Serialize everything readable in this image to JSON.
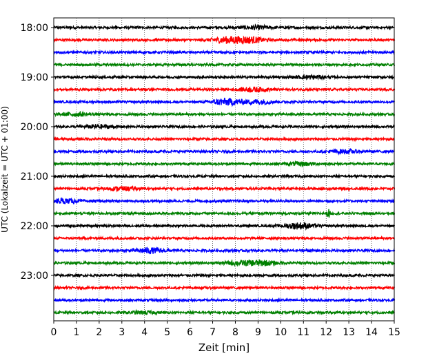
{
  "chart_data": {
    "type": "line",
    "title": "",
    "xlabel": "Zeit  [min]",
    "ylabel": "UTC (Lokalzeit = UTC + 01:00)",
    "xlim": [
      0,
      15
    ],
    "x_ticks": [
      "0",
      "1",
      "2",
      "3",
      "4",
      "5",
      "6",
      "7",
      "8",
      "9",
      "10",
      "11",
      "12",
      "13",
      "14",
      "15"
    ],
    "y_ticks": [
      "18:00",
      "19:00",
      "20:00",
      "21:00",
      "22:00",
      "23:00"
    ],
    "grid": "vertical dotted",
    "colors": [
      "#000000",
      "#ff0000",
      "#0000ff",
      "#008000"
    ],
    "traces": [
      {
        "start": "18:00",
        "color": "#000000",
        "amp": 3,
        "events": [
          {
            "t": 8.9,
            "amp": 4
          }
        ]
      },
      {
        "start": "18:15",
        "color": "#ff0000",
        "amp": 3,
        "events": [
          {
            "t": 7.6,
            "amp": 7
          },
          {
            "t": 8.6,
            "amp": 7
          }
        ]
      },
      {
        "start": "18:30",
        "color": "#0000ff",
        "amp": 3,
        "events": []
      },
      {
        "start": "18:45",
        "color": "#008000",
        "amp": 3,
        "events": []
      },
      {
        "start": "19:00",
        "color": "#000000",
        "amp": 3,
        "events": [
          {
            "t": 11.3,
            "amp": 4
          }
        ]
      },
      {
        "start": "19:15",
        "color": "#ff0000",
        "amp": 3,
        "events": [
          {
            "t": 8.8,
            "amp": 5
          }
        ]
      },
      {
        "start": "19:30",
        "color": "#0000ff",
        "amp": 3,
        "events": [
          {
            "t": 7.6,
            "amp": 8
          },
          {
            "t": 9.0,
            "amp": 5
          }
        ]
      },
      {
        "start": "19:45",
        "color": "#008000",
        "amp": 3,
        "events": [
          {
            "t": 1.0,
            "amp": 4
          }
        ]
      },
      {
        "start": "20:00",
        "color": "#000000",
        "amp": 3,
        "events": [
          {
            "t": 2.0,
            "amp": 4
          }
        ]
      },
      {
        "start": "20:15",
        "color": "#ff0000",
        "amp": 3,
        "events": []
      },
      {
        "start": "20:30",
        "color": "#0000ff",
        "amp": 3,
        "events": [
          {
            "t": 12.8,
            "amp": 4
          }
        ]
      },
      {
        "start": "20:45",
        "color": "#008000",
        "amp": 3,
        "events": [
          {
            "t": 10.9,
            "amp": 4
          }
        ]
      },
      {
        "start": "21:00",
        "color": "#000000",
        "amp": 3,
        "events": []
      },
      {
        "start": "21:15",
        "color": "#ff0000",
        "amp": 3,
        "events": [
          {
            "t": 3.0,
            "amp": 4
          }
        ]
      },
      {
        "start": "21:30",
        "color": "#0000ff",
        "amp": 3,
        "events": [
          {
            "t": 0.4,
            "amp": 5
          }
        ]
      },
      {
        "start": "21:45",
        "color": "#008000",
        "amp": 3,
        "events": [
          {
            "t": 12.1,
            "amp": 10,
            "spike": true
          }
        ]
      },
      {
        "start": "22:00",
        "color": "#000000",
        "amp": 3,
        "events": [
          {
            "t": 10.8,
            "amp": 7
          }
        ]
      },
      {
        "start": "22:15",
        "color": "#ff0000",
        "amp": 3,
        "events": []
      },
      {
        "start": "22:30",
        "color": "#0000ff",
        "amp": 3,
        "events": [
          {
            "t": 4.2,
            "amp": 6
          }
        ]
      },
      {
        "start": "22:45",
        "color": "#008000",
        "amp": 3,
        "events": [
          {
            "t": 8.1,
            "amp": 4
          },
          {
            "t": 9.1,
            "amp": 6
          }
        ]
      },
      {
        "start": "23:00",
        "color": "#000000",
        "amp": 3,
        "events": []
      },
      {
        "start": "23:15",
        "color": "#ff0000",
        "amp": 3,
        "events": []
      },
      {
        "start": "23:30",
        "color": "#0000ff",
        "amp": 3,
        "events": []
      },
      {
        "start": "23:45",
        "color": "#008000",
        "amp": 3,
        "events": [
          {
            "t": 3.9,
            "amp": 3
          }
        ]
      }
    ]
  }
}
